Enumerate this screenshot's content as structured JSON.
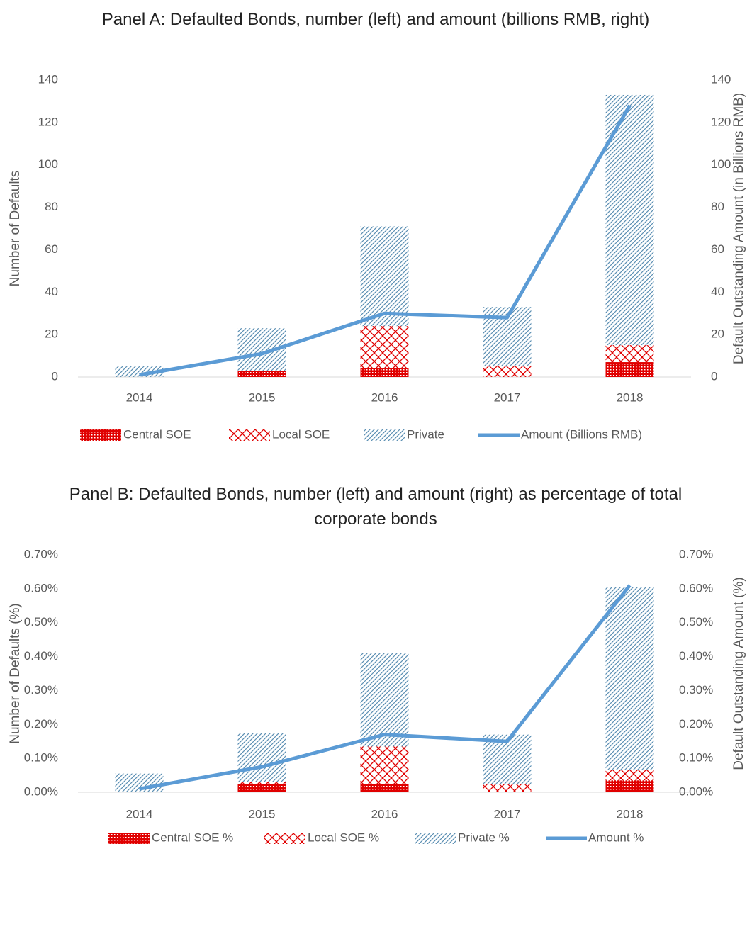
{
  "chart_data": [
    {
      "type": "bar",
      "stacked": true,
      "title": "Panel A: Defaulted Bonds, number (left) and amount (billions RMB, right)",
      "ylabel": "Number of Defaults",
      "y2label": "Default Outstanding Amount (in Billions RMB)",
      "categories": [
        "2014",
        "2015",
        "2016",
        "2017",
        "2018"
      ],
      "ylim": [
        0,
        140
      ],
      "yticks": [
        0,
        20,
        40,
        60,
        80,
        100,
        120,
        140
      ],
      "y2lim": [
        0,
        140
      ],
      "y2ticks": [
        0,
        20,
        40,
        60,
        80,
        100,
        120,
        140
      ],
      "legend": "bottom",
      "series": [
        {
          "name": "Central SOE",
          "type": "bar",
          "pattern": "dots",
          "color": "#e00000",
          "values": [
            0,
            3,
            4,
            0,
            7
          ]
        },
        {
          "name": "Local SOE",
          "type": "bar",
          "pattern": "crosses",
          "color": "#e00000",
          "values": [
            0,
            0,
            20,
            5,
            8
          ]
        },
        {
          "name": "Private",
          "type": "bar",
          "pattern": "hatch",
          "color": "#5b8fb3",
          "values": [
            5,
            20,
            47,
            28,
            118
          ]
        },
        {
          "name": "Amount (Billions RMB)",
          "type": "line",
          "axis": "y2",
          "color": "#5b9bd5",
          "values": [
            1,
            11,
            30,
            28,
            128
          ]
        }
      ]
    },
    {
      "type": "bar",
      "stacked": true,
      "title": "Panel B: Defaulted Bonds, number (left) and amount (right) as percentage of total corporate bonds",
      "ylabel": "Number of Defaults (%)",
      "y2label": "Default Outstanding Amount (%)",
      "categories": [
        "2014",
        "2015",
        "2016",
        "2017",
        "2018"
      ],
      "ylim": [
        0,
        0.7
      ],
      "yticks": [
        {
          "value": 0,
          "label": "0.00%"
        },
        {
          "value": 0.1,
          "label": "0.10%"
        },
        {
          "value": 0.2,
          "label": "0.20%"
        },
        {
          "value": 0.3,
          "label": "0.30%"
        },
        {
          "value": 0.4,
          "label": "0.40%"
        },
        {
          "value": 0.5,
          "label": "0.50%"
        },
        {
          "value": 0.6,
          "label": "0.60%"
        },
        {
          "value": 0.7,
          "label": "0.70%"
        }
      ],
      "y2lim": [
        0,
        0.7
      ],
      "y2ticks": [
        {
          "value": 0,
          "label": "0.00%"
        },
        {
          "value": 0.1,
          "label": "0.10%"
        },
        {
          "value": 0.2,
          "label": "0.20%"
        },
        {
          "value": 0.3,
          "label": "0.30%"
        },
        {
          "value": 0.4,
          "label": "0.40%"
        },
        {
          "value": 0.5,
          "label": "0.50%"
        },
        {
          "value": 0.6,
          "label": "0.60%"
        },
        {
          "value": 0.7,
          "label": "0.70%"
        }
      ],
      "legend": "bottom",
      "series": [
        {
          "name": "Central SOE %",
          "type": "bar",
          "pattern": "dots",
          "color": "#e00000",
          "values": [
            0,
            0.025,
            0.025,
            0,
            0.035
          ]
        },
        {
          "name": "Local SOE %",
          "type": "bar",
          "pattern": "crosses",
          "color": "#e00000",
          "values": [
            0,
            0.005,
            0.11,
            0.025,
            0.03
          ]
        },
        {
          "name": "Private %",
          "type": "bar",
          "pattern": "hatch",
          "color": "#5b8fb3",
          "values": [
            0.055,
            0.145,
            0.275,
            0.145,
            0.54
          ]
        },
        {
          "name": "Amount %",
          "type": "line",
          "axis": "y2",
          "color": "#5b9bd5",
          "values": [
            0.01,
            0.075,
            0.17,
            0.15,
            0.61
          ]
        }
      ]
    }
  ]
}
